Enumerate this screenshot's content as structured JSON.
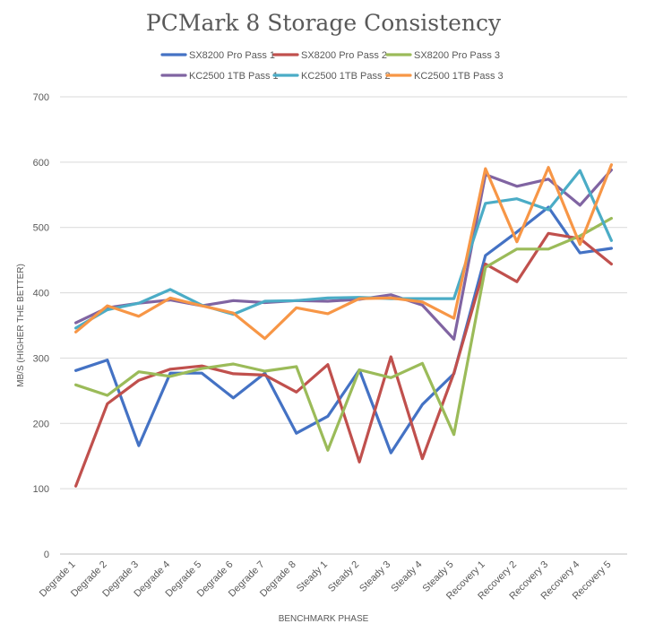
{
  "chart_data": {
    "type": "line",
    "title": "PCMark 8 Storage Consistency",
    "xlabel": "BENCHMARK PHASE",
    "ylabel": "MB/S (HIGHER THE BETTER)",
    "ylim": [
      0,
      700
    ],
    "yticks": [
      0,
      100,
      200,
      300,
      400,
      500,
      600,
      700
    ],
    "grid": true,
    "legend_position": "top",
    "categories": [
      "Degrade 1",
      "Degrade 2",
      "Degrade 3",
      "Degrade 4",
      "Degrade 5",
      "Degrade 6",
      "Degrade 7",
      "Degrade 8",
      "Steady 1",
      "Steady 2",
      "Steady 3",
      "Steady 4",
      "Steady 5",
      "Recovery 1",
      "Recovery 2",
      "Recovery 3",
      "Recovery 4",
      "Recovery 5"
    ],
    "series": [
      {
        "name": "SX8200 Pro Pass 1",
        "color": "#4472C4",
        "values": [
          281,
          297,
          166,
          277,
          277,
          239,
          277,
          185,
          211,
          282,
          155,
          229,
          276,
          457,
          493,
          531,
          461,
          468
        ]
      },
      {
        "name": "SX8200 Pro Pass 2",
        "color": "#C0504D",
        "values": [
          104,
          230,
          266,
          283,
          288,
          276,
          274,
          248,
          290,
          141,
          302,
          146,
          277,
          444,
          417,
          491,
          483,
          444
        ]
      },
      {
        "name": "SX8200 Pro Pass 3",
        "color": "#9BBB59",
        "values": [
          259,
          243,
          279,
          272,
          284,
          291,
          280,
          287,
          159,
          282,
          270,
          292,
          183,
          439,
          467,
          467,
          487,
          514
        ]
      },
      {
        "name": "KC2500 1TB Pass 1",
        "color": "#8064A2",
        "values": [
          354,
          377,
          384,
          389,
          380,
          388,
          385,
          388,
          387,
          390,
          397,
          381,
          329,
          581,
          563,
          574,
          534,
          588
        ]
      },
      {
        "name": "KC2500 1TB Pass 2",
        "color": "#4BACC6",
        "values": [
          346,
          374,
          384,
          405,
          381,
          367,
          387,
          388,
          392,
          393,
          391,
          391,
          391,
          537,
          544,
          527,
          587,
          480
        ]
      },
      {
        "name": "KC2500 1TB Pass 3",
        "color": "#F79646",
        "values": [
          340,
          380,
          364,
          392,
          380,
          369,
          330,
          377,
          368,
          391,
          392,
          386,
          361,
          590,
          478,
          592,
          474,
          596
        ]
      }
    ]
  }
}
